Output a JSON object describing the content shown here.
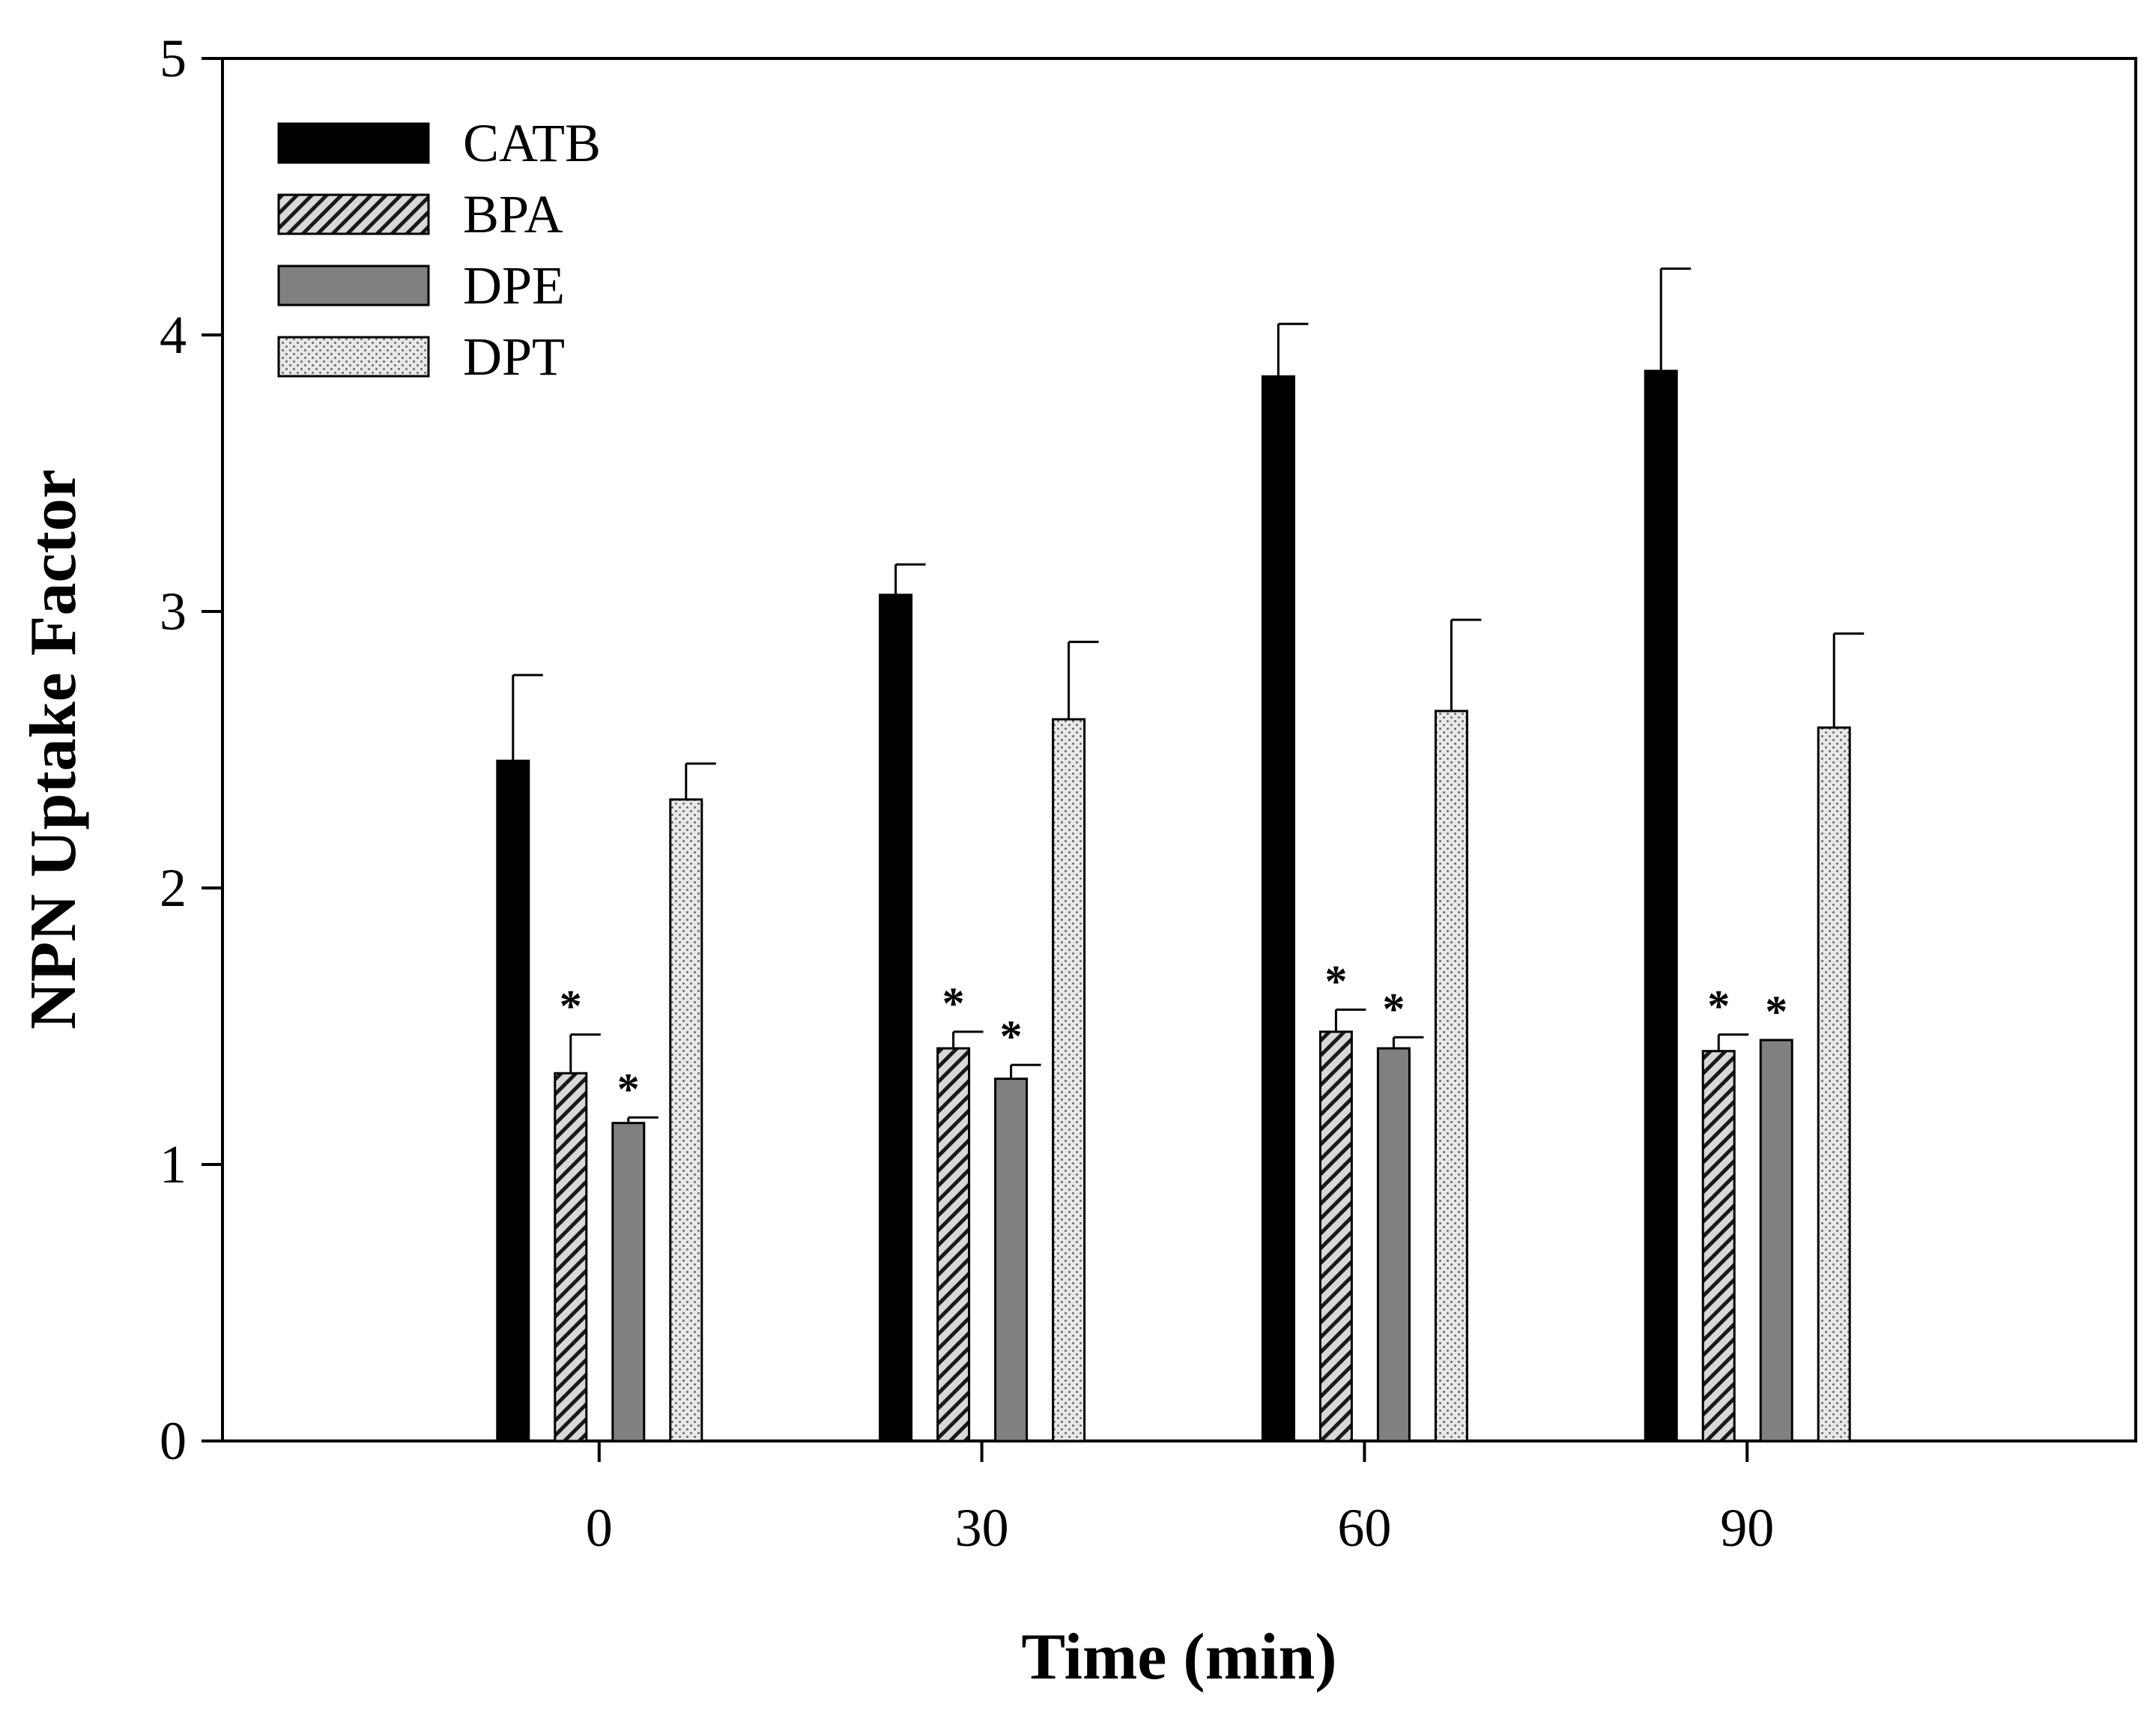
{
  "chart_data": {
    "type": "bar",
    "title": "",
    "xlabel": "Time (min)",
    "ylabel": "NPN Uptake Factor",
    "categories": [
      "0",
      "30",
      "60",
      "90"
    ],
    "ylim": [
      0,
      5
    ],
    "yticks": [
      "0",
      "1",
      "2",
      "3",
      "4",
      "5"
    ],
    "grid": false,
    "legend_position": "top-left",
    "series": [
      {
        "name": "CATB",
        "fill": "solid-black",
        "values": [
          2.46,
          3.06,
          3.85,
          3.87
        ],
        "errors": [
          0.31,
          0.11,
          0.19,
          0.37
        ],
        "significance": [
          "",
          "",
          "",
          ""
        ]
      },
      {
        "name": "BPA",
        "fill": "diagonal-hatch",
        "values": [
          1.33,
          1.42,
          1.48,
          1.41
        ],
        "errors": [
          0.14,
          0.06,
          0.08,
          0.06
        ],
        "significance": [
          "*",
          "*",
          "*",
          "*"
        ]
      },
      {
        "name": "DPE",
        "fill": "solid-gray",
        "values": [
          1.15,
          1.31,
          1.42,
          1.45
        ],
        "errors": [
          0.02,
          0.05,
          0.04,
          0.0
        ],
        "significance": [
          "*",
          "*",
          "*",
          "*"
        ]
      },
      {
        "name": "DPT",
        "fill": "dotted",
        "values": [
          2.32,
          2.61,
          2.64,
          2.58
        ],
        "errors": [
          0.13,
          0.28,
          0.33,
          0.34
        ],
        "significance": [
          "",
          "",
          "",
          ""
        ]
      }
    ],
    "colors": {
      "catb": "#000000",
      "bpa_bg": "#d8d8d8",
      "bpa_hatch": "#1a1a1a",
      "dpe": "#808080",
      "dpt_bg": "#e8e8e8",
      "dpt_dot": "#6a6a6a",
      "axis": "#000000",
      "background": "#ffffff"
    }
  }
}
